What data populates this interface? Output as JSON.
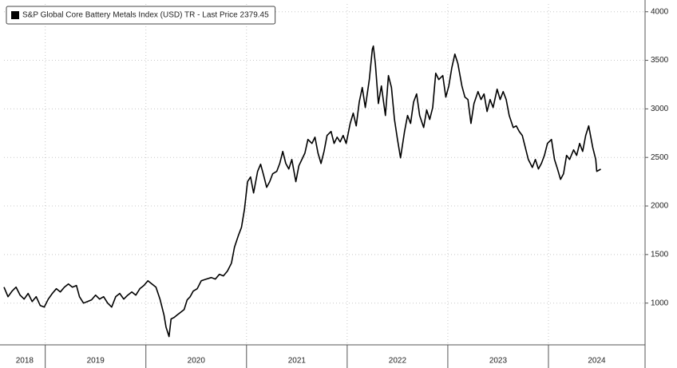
{
  "chart_data": {
    "type": "line",
    "legend": "upper left",
    "grid": true,
    "log_scale": false,
    "xlim": [
      2018.59,
      2024.96
    ],
    "xticks": [
      2018,
      2019,
      2020,
      2021,
      2022,
      2023,
      2024
    ],
    "ylim": [
      570,
      4080
    ],
    "yticks": [
      1000,
      1500,
      2000,
      2500,
      3000,
      3500,
      4000
    ],
    "x": [
      2018.59,
      2018.63,
      2018.67,
      2018.71,
      2018.75,
      2018.79,
      2018.83,
      2018.87,
      2018.91,
      2018.95,
      2018.99,
      2019.03,
      2019.07,
      2019.11,
      2019.15,
      2019.19,
      2019.23,
      2019.27,
      2019.31,
      2019.34,
      2019.38,
      2019.42,
      2019.46,
      2019.5,
      2019.54,
      2019.58,
      2019.62,
      2019.66,
      2019.7,
      2019.74,
      2019.78,
      2019.82,
      2019.86,
      2019.9,
      2019.94,
      2019.98,
      2020.02,
      2020.06,
      2020.1,
      2020.14,
      2020.18,
      2020.2,
      2020.23,
      2020.25,
      2020.28,
      2020.31,
      2020.34,
      2020.38,
      2020.41,
      2020.44,
      2020.47,
      2020.51,
      2020.55,
      2020.6,
      2020.65,
      2020.69,
      2020.73,
      2020.77,
      2020.81,
      2020.85,
      2020.88,
      2020.92,
      2020.95,
      2020.98,
      2021.01,
      2021.04,
      2021.07,
      2021.11,
      2021.14,
      2021.17,
      2021.2,
      2021.23,
      2021.26,
      2021.3,
      2021.33,
      2021.36,
      2021.39,
      2021.42,
      2021.45,
      2021.49,
      2021.52,
      2021.55,
      2021.58,
      2021.61,
      2021.65,
      2021.68,
      2021.71,
      2021.74,
      2021.77,
      2021.8,
      2021.84,
      2021.87,
      2021.9,
      2021.93,
      2021.96,
      2021.99,
      2022.03,
      2022.06,
      2022.09,
      2022.12,
      2022.15,
      2022.18,
      2022.22,
      2022.25,
      2022.26,
      2022.28,
      2022.31,
      2022.34,
      2022.38,
      2022.41,
      2022.44,
      2022.47,
      2022.5,
      2022.53,
      2022.57,
      2022.6,
      2022.63,
      2022.66,
      2022.69,
      2022.72,
      2022.76,
      2022.79,
      2022.82,
      2022.85,
      2022.88,
      2022.91,
      2022.95,
      2022.98,
      2023.01,
      2023.04,
      2023.07,
      2023.1,
      2023.14,
      2023.17,
      2023.2,
      2023.23,
      2023.26,
      2023.3,
      2023.33,
      2023.36,
      2023.39,
      2023.42,
      2023.45,
      2023.49,
      2023.52,
      2023.55,
      2023.58,
      2023.61,
      2023.65,
      2023.68,
      2023.71,
      2023.74,
      2023.77,
      2023.8,
      2023.84,
      2023.87,
      2023.9,
      2023.93,
      2023.96,
      2023.99,
      2024.03,
      2024.06,
      2024.09,
      2024.12,
      2024.15,
      2024.18,
      2024.21,
      2024.25,
      2024.28,
      2024.31,
      2024.34,
      2024.37,
      2024.4,
      2024.44,
      2024.47,
      2024.48,
      2024.52
    ],
    "series": [
      {
        "name": "S&P Global Core Battery Metals Index (USD) TR - Last Price 2379.45",
        "color": "#000000",
        "values": [
          1164,
          1066,
          1123,
          1164,
          1082,
          1041,
          1099,
          1016,
          1066,
          975,
          959,
          1041,
          1099,
          1148,
          1115,
          1164,
          1197,
          1164,
          1181,
          1066,
          1000,
          1016,
          1033,
          1082,
          1041,
          1066,
          1000,
          959,
          1066,
          1099,
          1041,
          1082,
          1115,
          1082,
          1148,
          1181,
          1230,
          1197,
          1164,
          1041,
          877,
          753,
          655,
          836,
          852,
          877,
          901,
          934,
          1033,
          1066,
          1123,
          1148,
          1230,
          1247,
          1263,
          1247,
          1296,
          1280,
          1329,
          1411,
          1575,
          1699,
          1781,
          1970,
          2250,
          2299,
          2134,
          2356,
          2430,
          2315,
          2192,
          2250,
          2332,
          2356,
          2438,
          2562,
          2438,
          2381,
          2479,
          2250,
          2414,
          2479,
          2545,
          2685,
          2644,
          2709,
          2545,
          2438,
          2562,
          2726,
          2767,
          2644,
          2709,
          2660,
          2726,
          2644,
          2850,
          2956,
          2825,
          3071,
          3220,
          3014,
          3302,
          3614,
          3647,
          3466,
          3055,
          3236,
          2932,
          3343,
          3220,
          2891,
          2685,
          2496,
          2767,
          2932,
          2850,
          3071,
          3154,
          2932,
          2808,
          2989,
          2891,
          3014,
          3367,
          3302,
          3343,
          3121,
          3236,
          3425,
          3564,
          3466,
          3236,
          3121,
          3096,
          2850,
          3055,
          3178,
          3096,
          3154,
          2973,
          3096,
          3014,
          3203,
          3096,
          3178,
          3096,
          2932,
          2808,
          2825,
          2767,
          2726,
          2603,
          2479,
          2397,
          2479,
          2381,
          2438,
          2521,
          2644,
          2685,
          2479,
          2381,
          2274,
          2332,
          2521,
          2479,
          2578,
          2521,
          2644,
          2562,
          2726,
          2825,
          2603,
          2479,
          2356,
          2379.45
        ]
      }
    ]
  }
}
